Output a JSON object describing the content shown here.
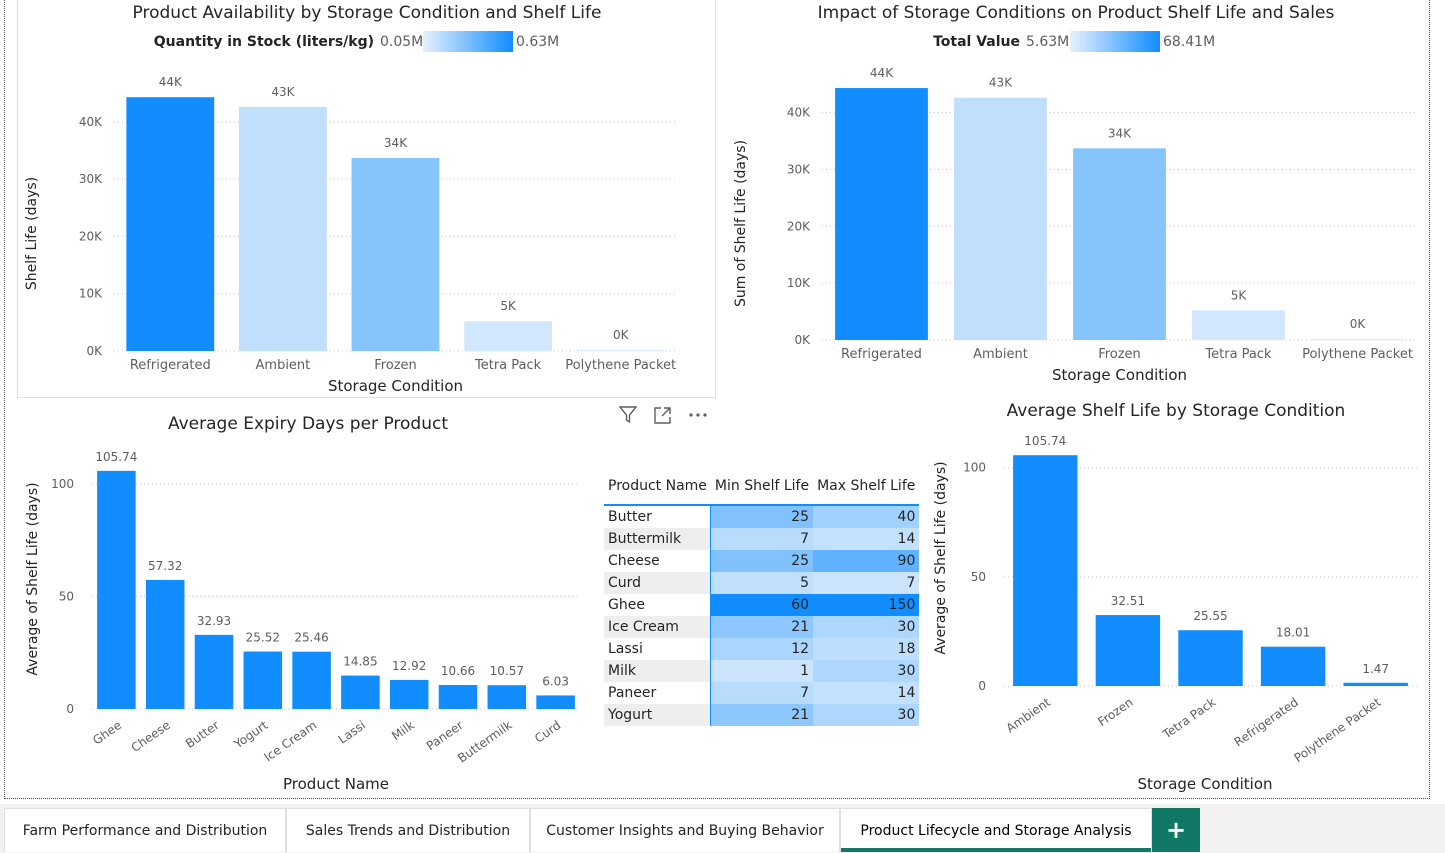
{
  "colors": {
    "accent": "#118dff",
    "light": "#e6f1fd",
    "tab_accent": "#117865"
  },
  "visual1": {
    "title": "Product Availability by Storage Condition and Shelf Life",
    "legend_title": "Quantity in Stock (liters/kg)",
    "legend_min": "0.05M",
    "legend_max": "0.63M",
    "chart_data": {
      "type": "bar",
      "title": "Product Availability by Storage Condition and Shelf Life",
      "xlabel": "Storage Condition",
      "ylabel": "Shelf Life (days)",
      "categories": [
        "Refrigerated",
        "Ambient",
        "Frozen",
        "Tetra Pack",
        "Polythene Packet"
      ],
      "values": [
        44300,
        42600,
        33700,
        5200,
        200
      ],
      "data_labels": [
        "44K",
        "43K",
        "34K",
        "5K",
        "0K"
      ],
      "color_intensity": [
        1.0,
        0.18,
        0.45,
        0.1,
        0.05
      ],
      "yticks": [
        0,
        10000,
        20000,
        30000,
        40000
      ],
      "ytick_labels": [
        "0K",
        "10K",
        "20K",
        "30K",
        "40K"
      ],
      "ylim": [
        0,
        48000
      ]
    }
  },
  "visual2": {
    "title": "Impact of Storage Conditions on Product Shelf Life and Sales",
    "legend_title": "Total Value",
    "legend_min": "5.63M",
    "legend_max": "68.41M",
    "chart_data": {
      "type": "bar",
      "title": "Impact of Storage Conditions on Product Shelf Life and Sales",
      "xlabel": "Storage Condition",
      "ylabel": "Sum of Shelf Life (days)",
      "categories": [
        "Refrigerated",
        "Ambient",
        "Frozen",
        "Tetra Pack",
        "Polythene Packet"
      ],
      "values": [
        44300,
        42600,
        33700,
        5200,
        200
      ],
      "data_labels": [
        "44K",
        "43K",
        "34K",
        "5K",
        "0K"
      ],
      "color_intensity": [
        1.0,
        0.18,
        0.45,
        0.1,
        0.05
      ],
      "yticks": [
        0,
        10000,
        20000,
        30000,
        40000
      ],
      "ytick_labels": [
        "0K",
        "10K",
        "20K",
        "30K",
        "40K"
      ],
      "ylim": [
        0,
        48000
      ]
    }
  },
  "visual3": {
    "title": "Average Expiry Days per Product",
    "chart_data": {
      "type": "bar",
      "title": "Average Expiry Days per Product",
      "xlabel": "Product Name",
      "ylabel": "Average of Shelf Life (days)",
      "categories": [
        "Ghee",
        "Cheese",
        "Butter",
        "Yogurt",
        "Ice Cream",
        "Lassi",
        "Milk",
        "Paneer",
        "Buttermilk",
        "Curd"
      ],
      "values": [
        105.74,
        57.32,
        32.93,
        25.52,
        25.46,
        14.85,
        12.92,
        10.66,
        10.57,
        6.03
      ],
      "yticks": [
        0,
        50,
        100
      ],
      "ylim": [
        0,
        115
      ]
    }
  },
  "matrix": {
    "headers": [
      "Product Name",
      "Min Shelf Life",
      "Max Shelf Life"
    ],
    "rows": [
      {
        "name": "Butter",
        "min": "25",
        "max": "40"
      },
      {
        "name": "Buttermilk",
        "min": "7",
        "max": "14"
      },
      {
        "name": "Cheese",
        "min": "25",
        "max": "90"
      },
      {
        "name": "Curd",
        "min": "5",
        "max": "7"
      },
      {
        "name": "Ghee",
        "min": "60",
        "max": "150"
      },
      {
        "name": "Ice Cream",
        "min": "21",
        "max": "30"
      },
      {
        "name": "Lassi",
        "min": "12",
        "max": "18"
      },
      {
        "name": "Milk",
        "min": "1",
        "max": "30"
      },
      {
        "name": "Paneer",
        "min": "7",
        "max": "14"
      },
      {
        "name": "Yogurt",
        "min": "21",
        "max": "30"
      }
    ],
    "min_color_scale": [
      1,
      60
    ],
    "max_color_scale": [
      7,
      150
    ]
  },
  "visual5": {
    "title": "Average Shelf Life by Storage Condition",
    "chart_data": {
      "type": "bar",
      "title": "Average Shelf Life by Storage Condition",
      "xlabel": "Storage Condition",
      "ylabel": "Average of Shelf Life (days)",
      "categories": [
        "Ambient",
        "Frozen",
        "Tetra Pack",
        "Refrigerated",
        "Polythene Packet"
      ],
      "values": [
        105.74,
        32.51,
        25.55,
        18.01,
        1.47
      ],
      "yticks": [
        0,
        50,
        100
      ],
      "ylim": [
        0,
        115
      ]
    }
  },
  "header_icons": [
    "filter-icon",
    "focus-mode-icon",
    "more-options-icon"
  ],
  "tabs": [
    {
      "label": "Farm Performance and Distribution",
      "active": false
    },
    {
      "label": "Sales Trends and Distribution",
      "active": false
    },
    {
      "label": "Customer Insights and Buying Behavior",
      "active": false
    },
    {
      "label": "Product Lifecycle and Storage Analysis",
      "active": true
    }
  ],
  "add_tab_label": "+"
}
